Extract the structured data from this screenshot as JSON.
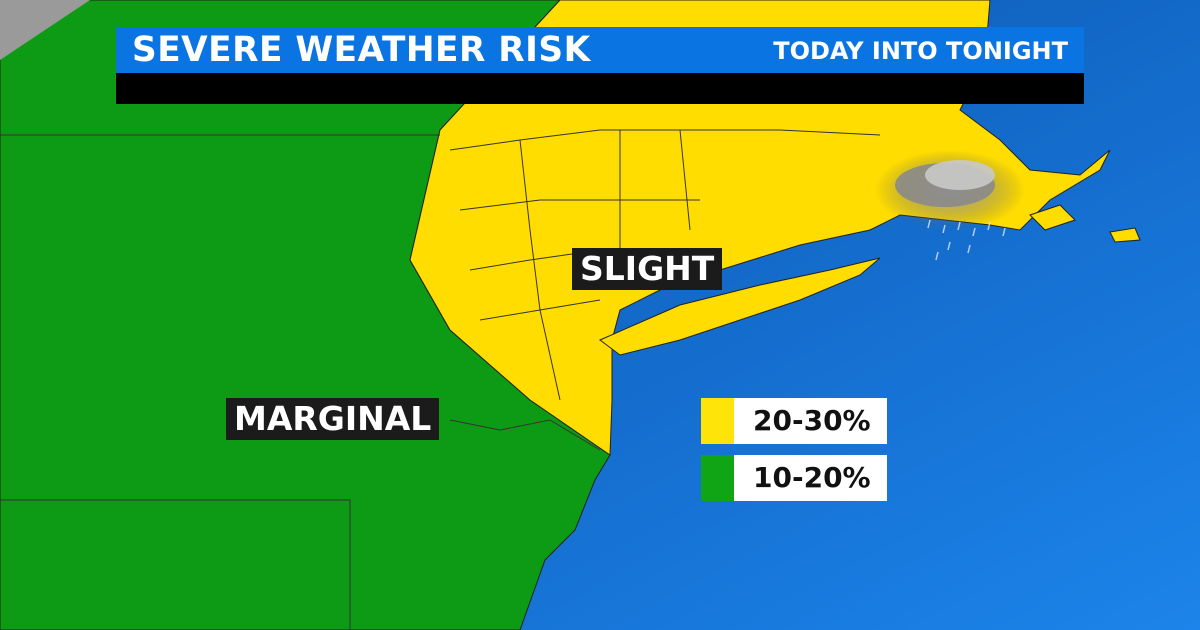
{
  "header": {
    "title": "SEVERE WEATHER RISK",
    "subtitle": "TODAY INTO TONIGHT"
  },
  "map": {
    "labels": [
      {
        "text": "SLIGHT",
        "category": "slight"
      },
      {
        "text": "MARGINAL",
        "category": "marginal"
      }
    ],
    "colors": {
      "slight": "#ffdd00",
      "marginal": "#0d9a14",
      "ocean": "#0b5cbd",
      "header": "#0a74e2"
    },
    "icon": "rain-cloud-icon"
  },
  "legend": [
    {
      "label": "20-30%",
      "color": "#ffe40a"
    },
    {
      "label": "10-20%",
      "color": "#0fa514"
    }
  ]
}
